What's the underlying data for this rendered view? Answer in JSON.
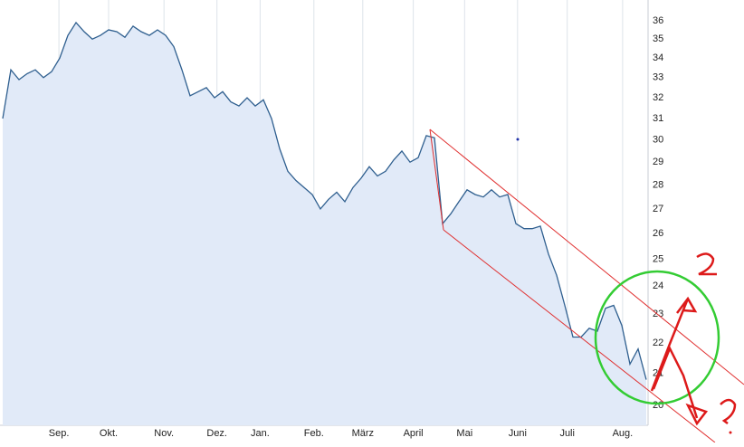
{
  "chart_data": {
    "type": "area",
    "log_scale": true,
    "grid": true,
    "color": "#2f5f8f",
    "fill": "#e1eaf8",
    "values": [
      31.0,
      33.4,
      32.9,
      33.2,
      33.4,
      33.0,
      33.3,
      34.0,
      35.2,
      35.9,
      35.4,
      35.0,
      35.2,
      35.5,
      35.4,
      35.1,
      35.7,
      35.4,
      35.2,
      35.5,
      35.2,
      34.6,
      33.4,
      32.1,
      32.3,
      32.5,
      32.0,
      32.3,
      31.8,
      31.6,
      32.0,
      31.6,
      31.9,
      31.0,
      29.6,
      28.6,
      28.2,
      27.9,
      27.6,
      27.0,
      27.4,
      27.7,
      27.3,
      27.9,
      28.3,
      28.8,
      28.4,
      28.6,
      29.1,
      29.5,
      29.0,
      29.2,
      30.2,
      30.1,
      26.4,
      26.8,
      27.3,
      27.8,
      27.6,
      27.5,
      27.8,
      27.5,
      27.6,
      26.4,
      26.2,
      26.2,
      26.3,
      25.2,
      24.4,
      23.3,
      22.2,
      22.2,
      22.5,
      22.4,
      23.2,
      23.3,
      22.6,
      21.3,
      21.8,
      20.8
    ],
    "xlim": [
      0,
      79
    ],
    "xticks": [
      {
        "value": 6.9,
        "label": "Sep."
      },
      {
        "value": 13,
        "label": "Okt."
      },
      {
        "value": 19.8,
        "label": "Nov."
      },
      {
        "value": 26.3,
        "label": "Dez."
      },
      {
        "value": 31.6,
        "label": "Jan."
      },
      {
        "value": 38.2,
        "label": "Feb."
      },
      {
        "value": 44.2,
        "label": "März"
      },
      {
        "value": 50.4,
        "label": "April"
      },
      {
        "value": 56.7,
        "label": "Mai"
      },
      {
        "value": 63.2,
        "label": "Juni"
      },
      {
        "value": 69.3,
        "label": "Juli"
      },
      {
        "value": 76.1,
        "label": "Aug."
      }
    ],
    "ylim": [
      19.4,
      36.9
    ],
    "yticks": [
      20,
      21,
      22,
      23,
      24,
      25,
      26,
      27,
      28,
      29,
      30,
      31,
      32,
      33,
      34,
      35,
      36
    ]
  }
}
